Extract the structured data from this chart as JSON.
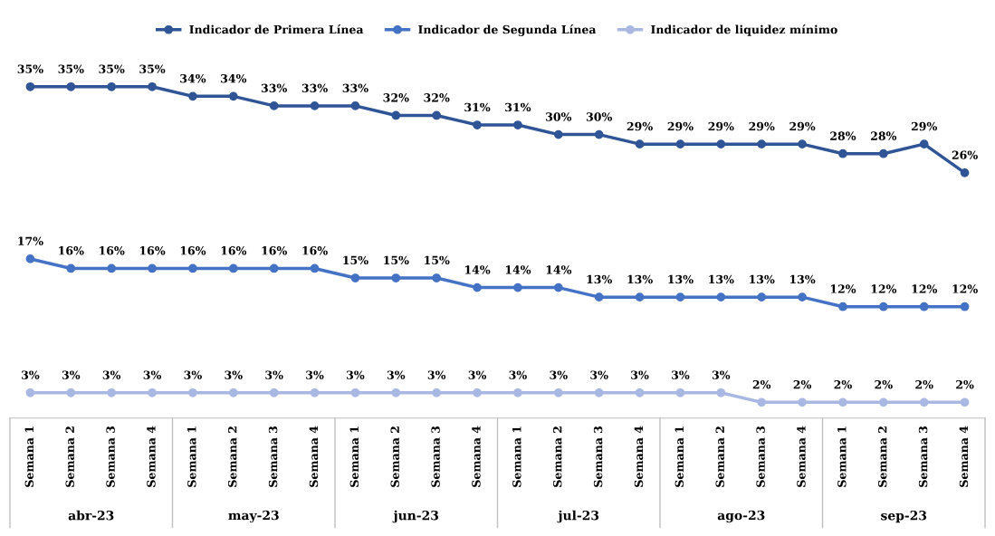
{
  "chart_data": {
    "type": "line",
    "marker": "circle",
    "line_style": "solid",
    "legend": "top",
    "grid": false,
    "categories": [
      "Semana 1",
      "Semana 2",
      "Semana 3",
      "Semana 4",
      "Semana 1",
      "Semana 2",
      "Semana 3",
      "Semana 4",
      "Semana 1",
      "Semana 2",
      "Semana 3",
      "Semana 4",
      "Semana 1",
      "Semana 2",
      "Semana 3",
      "Semana 4",
      "Semana 1",
      "Semana 2",
      "Semana 3",
      "Semana 4",
      "Semana 1",
      "Semana 2",
      "Semana 3",
      "Semana 4"
    ],
    "annotations": [
      "abr-23",
      "may-23",
      "jun-23",
      "jul-23",
      "ago-23",
      "sep-23"
    ],
    "series": [
      {
        "name": "Indicador de Primera Línea",
        "color": "#2f5597",
        "values": [
          35,
          35,
          35,
          35,
          34,
          34,
          33,
          33,
          33,
          32,
          32,
          31,
          31,
          30,
          30,
          29,
          29,
          29,
          29,
          29,
          28,
          28,
          29,
          26
        ],
        "value_labels": [
          "35%",
          "35%",
          "35%",
          "35%",
          "34%",
          "34%",
          "33%",
          "33%",
          "33%",
          "32%",
          "32%",
          "31%",
          "31%",
          "30%",
          "30%",
          "29%",
          "29%",
          "29%",
          "29%",
          "29%",
          "28%",
          "28%",
          "29%",
          "26%"
        ]
      },
      {
        "name": "Indicador de Segunda Línea",
        "color": "#4472c4",
        "values": [
          17,
          16,
          16,
          16,
          16,
          16,
          16,
          16,
          15,
          15,
          15,
          14,
          14,
          14,
          13,
          13,
          13,
          13,
          13,
          13,
          12,
          12,
          12,
          12
        ],
        "value_labels": [
          "17%",
          "16%",
          "16%",
          "16%",
          "16%",
          "16%",
          "16%",
          "16%",
          "15%",
          "15%",
          "15%",
          "14%",
          "14%",
          "14%",
          "13%",
          "13%",
          "13%",
          "13%",
          "13%",
          "13%",
          "12%",
          "12%",
          "12%",
          "12%"
        ]
      },
      {
        "name": "Indicador de liquidez mínimo",
        "color": "#a9b8e2",
        "values": [
          3,
          3,
          3,
          3,
          3,
          3,
          3,
          3,
          3,
          3,
          3,
          3,
          3,
          3,
          3,
          3,
          3,
          3,
          2,
          2,
          2,
          2,
          2,
          2
        ],
        "value_labels": [
          "3%",
          "3%",
          "3%",
          "3%",
          "3%",
          "3%",
          "3%",
          "3%",
          "3%",
          "3%",
          "3%",
          "3%",
          "3%",
          "3%",
          "3%",
          "3%",
          "3%",
          "3%",
          "2%",
          "2%",
          "2%",
          "2%",
          "2%",
          "2%"
        ]
      }
    ]
  }
}
